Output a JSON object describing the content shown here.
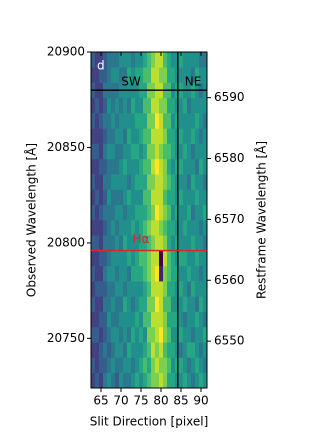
{
  "chart_data": {
    "type": "heatmap",
    "xlabel": "Slit Direction [pixel]",
    "ylabel": "Observed Wavelength [Å]",
    "y2label": "Restframe Wavelength [Å]",
    "colormap": "viridis",
    "clim": [
      0,
      1
    ],
    "xlim": [
      62.5,
      91.5
    ],
    "ylim": [
      20724,
      20900
    ],
    "y2lim": [
      6542.3,
      6597.5
    ],
    "xticks": [
      65,
      70,
      75,
      80,
      85,
      90
    ],
    "yticks": [
      20750,
      20800,
      20850,
      20900
    ],
    "y2ticks": [
      6550,
      6560,
      6570,
      6580,
      6590
    ],
    "x": [
      63,
      64,
      65,
      66,
      67,
      68,
      69,
      70,
      71,
      72,
      73,
      74,
      75,
      76,
      77,
      78,
      79,
      80,
      81,
      82,
      83,
      84,
      85,
      86,
      87,
      88,
      89,
      90,
      91
    ],
    "y": [
      20728,
      20736,
      20744,
      20752,
      20760,
      20768,
      20776,
      20784,
      20792,
      20800,
      20808,
      20816,
      20824,
      20832,
      20840,
      20848,
      20856,
      20864,
      20872,
      20880,
      20888,
      20896
    ],
    "z": [
      [
        0.2,
        0.3,
        0.2,
        0.4,
        0.5,
        0.4,
        0.3,
        0.5,
        0.4,
        0.4,
        0.5,
        0.6,
        0.5,
        0.6,
        0.7,
        0.8,
        0.8,
        0.9,
        0.8,
        0.6,
        0.6,
        0.5,
        0.5,
        0.6,
        0.5,
        0.4,
        0.5,
        0.6,
        0.5
      ],
      [
        0.3,
        0.2,
        0.3,
        0.3,
        0.4,
        0.5,
        0.4,
        0.4,
        0.5,
        0.5,
        0.4,
        0.5,
        0.6,
        0.7,
        0.6,
        0.8,
        0.9,
        0.8,
        0.8,
        0.7,
        0.5,
        0.6,
        0.6,
        0.5,
        0.4,
        0.5,
        0.6,
        0.5,
        0.4
      ],
      [
        0.2,
        0.2,
        0.3,
        0.4,
        0.3,
        0.4,
        0.5,
        0.5,
        0.4,
        0.6,
        0.5,
        0.5,
        0.5,
        0.6,
        0.7,
        0.9,
        0.8,
        0.9,
        0.7,
        0.6,
        0.6,
        0.5,
        0.4,
        0.5,
        0.6,
        0.6,
        0.5,
        0.4,
        0.5
      ],
      [
        0.3,
        0.3,
        0.2,
        0.3,
        0.4,
        0.5,
        0.5,
        0.4,
        0.5,
        0.4,
        0.6,
        0.5,
        0.6,
        0.5,
        0.8,
        0.8,
        0.9,
        1.0,
        0.8,
        0.7,
        0.5,
        0.5,
        0.6,
        0.5,
        0.5,
        0.4,
        0.5,
        0.5,
        0.6
      ],
      [
        0.2,
        0.2,
        0.3,
        0.3,
        0.5,
        0.4,
        0.4,
        0.5,
        0.5,
        0.5,
        0.5,
        0.6,
        0.5,
        0.7,
        0.7,
        0.9,
        0.9,
        0.9,
        0.8,
        0.6,
        0.6,
        0.6,
        0.5,
        0.4,
        0.5,
        0.5,
        0.6,
        0.5,
        0.4
      ],
      [
        0.3,
        0.2,
        0.2,
        0.4,
        0.4,
        0.5,
        0.4,
        0.4,
        0.6,
        0.5,
        0.4,
        0.5,
        0.6,
        0.6,
        0.8,
        0.8,
        1.0,
        0.9,
        0.7,
        0.7,
        0.5,
        0.5,
        0.5,
        0.6,
        0.5,
        0.5,
        0.4,
        0.6,
        0.5
      ],
      [
        0.2,
        0.3,
        0.3,
        0.3,
        0.4,
        0.4,
        0.5,
        0.5,
        0.4,
        0.5,
        0.5,
        0.5,
        0.5,
        0.6,
        0.7,
        0.9,
        0.9,
        0.9,
        0.8,
        0.6,
        0.6,
        0.5,
        0.6,
        0.5,
        0.4,
        0.6,
        0.5,
        0.5,
        0.5
      ],
      [
        0.3,
        0.2,
        0.2,
        0.4,
        0.5,
        0.5,
        0.4,
        0.5,
        0.5,
        0.4,
        0.6,
        0.6,
        0.6,
        0.7,
        0.8,
        0.9,
        1.0,
        0.1,
        0.8,
        0.7,
        0.6,
        0.6,
        0.5,
        0.5,
        0.6,
        0.5,
        0.5,
        0.4,
        0.5
      ],
      [
        0.2,
        0.2,
        0.3,
        0.3,
        0.4,
        0.5,
        0.5,
        0.5,
        0.5,
        0.6,
        0.5,
        0.6,
        0.7,
        0.7,
        0.8,
        0.9,
        0.9,
        0.0,
        0.9,
        0.7,
        0.6,
        0.5,
        0.6,
        0.6,
        0.5,
        0.5,
        0.6,
        0.5,
        0.5
      ],
      [
        0.3,
        0.3,
        0.2,
        0.4,
        0.4,
        0.4,
        0.5,
        0.4,
        0.6,
        0.5,
        0.5,
        0.5,
        0.6,
        0.6,
        0.7,
        0.8,
        0.9,
        0.9,
        0.8,
        0.6,
        0.5,
        0.6,
        0.5,
        0.5,
        0.5,
        0.6,
        0.5,
        0.5,
        0.4
      ],
      [
        0.2,
        0.2,
        0.2,
        0.3,
        0.4,
        0.5,
        0.4,
        0.5,
        0.5,
        0.5,
        0.6,
        0.5,
        0.6,
        0.7,
        0.8,
        0.9,
        0.9,
        0.8,
        0.7,
        0.6,
        0.6,
        0.5,
        0.5,
        0.6,
        0.5,
        0.5,
        0.5,
        0.4,
        0.5
      ],
      [
        0.3,
        0.2,
        0.3,
        0.4,
        0.4,
        0.4,
        0.5,
        0.5,
        0.4,
        0.5,
        0.5,
        0.6,
        0.6,
        0.6,
        0.7,
        0.8,
        1.0,
        0.9,
        0.8,
        0.7,
        0.5,
        0.6,
        0.5,
        0.5,
        0.6,
        0.4,
        0.5,
        0.5,
        0.6
      ],
      [
        0.2,
        0.3,
        0.2,
        0.3,
        0.5,
        0.4,
        0.4,
        0.4,
        0.5,
        0.6,
        0.5,
        0.5,
        0.5,
        0.7,
        0.7,
        0.9,
        0.9,
        0.9,
        0.7,
        0.6,
        0.6,
        0.5,
        0.6,
        0.5,
        0.5,
        0.5,
        0.6,
        0.5,
        0.5
      ],
      [
        0.3,
        0.2,
        0.2,
        0.4,
        0.4,
        0.5,
        0.5,
        0.5,
        0.5,
        0.4,
        0.5,
        0.6,
        0.6,
        0.6,
        0.8,
        0.8,
        0.9,
        0.9,
        0.8,
        0.7,
        0.6,
        0.5,
        0.5,
        0.5,
        0.4,
        0.6,
        0.5,
        0.5,
        0.4
      ],
      [
        0.2,
        0.2,
        0.3,
        0.3,
        0.4,
        0.4,
        0.4,
        0.5,
        0.6,
        0.5,
        0.5,
        0.5,
        0.6,
        0.7,
        0.7,
        0.9,
        1.0,
        0.9,
        0.8,
        0.6,
        0.5,
        0.6,
        0.6,
        0.5,
        0.5,
        0.5,
        0.4,
        0.6,
        0.5
      ],
      [
        0.3,
        0.3,
        0.2,
        0.4,
        0.5,
        0.5,
        0.4,
        0.4,
        0.5,
        0.5,
        0.6,
        0.6,
        0.5,
        0.6,
        0.8,
        0.8,
        0.9,
        0.8,
        0.7,
        0.7,
        0.6,
        0.5,
        0.5,
        0.6,
        0.5,
        0.4,
        0.5,
        0.5,
        0.5
      ],
      [
        0.2,
        0.2,
        0.2,
        0.3,
        0.4,
        0.4,
        0.5,
        0.5,
        0.4,
        0.6,
        0.5,
        0.5,
        0.6,
        0.7,
        0.7,
        0.9,
        0.9,
        0.9,
        0.8,
        0.6,
        0.6,
        0.5,
        0.6,
        0.5,
        0.5,
        0.6,
        0.5,
        0.4,
        0.5
      ],
      [
        0.3,
        0.2,
        0.3,
        0.4,
        0.4,
        0.5,
        0.4,
        0.5,
        0.5,
        0.5,
        0.5,
        0.6,
        0.6,
        0.6,
        0.8,
        0.8,
        1.0,
        0.9,
        0.7,
        0.7,
        0.5,
        0.6,
        0.5,
        0.5,
        0.5,
        0.5,
        0.6,
        0.5,
        0.4
      ],
      [
        0.2,
        0.3,
        0.2,
        0.3,
        0.5,
        0.4,
        0.5,
        0.4,
        0.5,
        0.4,
        0.6,
        0.5,
        0.5,
        0.7,
        0.7,
        0.9,
        0.9,
        0.8,
        0.8,
        0.6,
        0.6,
        0.5,
        0.5,
        0.6,
        0.4,
        0.5,
        0.5,
        0.5,
        0.5
      ],
      [
        0.3,
        0.2,
        0.2,
        0.4,
        0.4,
        0.4,
        0.4,
        0.5,
        0.5,
        0.5,
        0.5,
        0.5,
        0.6,
        0.6,
        0.8,
        0.8,
        0.9,
        0.9,
        0.7,
        0.7,
        0.5,
        0.6,
        0.6,
        0.5,
        0.5,
        0.6,
        0.5,
        0.4,
        0.5
      ],
      [
        0.2,
        0.2,
        0.3,
        0.3,
        0.4,
        0.5,
        0.5,
        0.4,
        0.4,
        0.6,
        0.5,
        0.6,
        0.6,
        0.7,
        0.7,
        0.9,
        0.9,
        0.8,
        0.8,
        0.6,
        0.6,
        0.5,
        0.5,
        0.5,
        0.5,
        0.4,
        0.6,
        0.5,
        0.5
      ],
      [
        0.3,
        0.2,
        0.2,
        0.3,
        0.4,
        0.4,
        0.4,
        0.5,
        0.5,
        0.5,
        0.4,
        0.5,
        0.5,
        0.6,
        0.7,
        0.8,
        0.9,
        0.9,
        0.7,
        0.6,
        0.5,
        0.5,
        0.6,
        0.5,
        0.5,
        0.5,
        0.5,
        0.4,
        0.4
      ]
    ],
    "lines": [
      {
        "axis": "x",
        "value": 84.2,
        "color": "#000000"
      },
      {
        "axis": "y",
        "value": 20880,
        "color": "#000000"
      },
      {
        "axis": "y",
        "value": 20796,
        "color": "#d62728"
      }
    ],
    "labels": [
      {
        "text": "d",
        "color": "#ffffff"
      },
      {
        "text": "SW",
        "color": "#000000"
      },
      {
        "text": "NE",
        "color": "#000000"
      },
      {
        "text": "Hα",
        "color": "#d62728"
      }
    ]
  }
}
